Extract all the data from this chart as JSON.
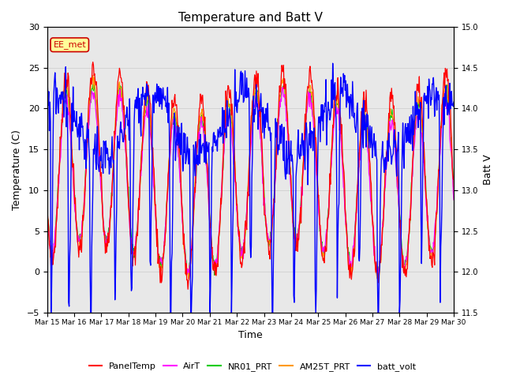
{
  "title": "Temperature and Batt V",
  "xlabel": "Time",
  "ylabel_left": "Temperature (C)",
  "ylabel_right": "Batt V",
  "ylim_left": [
    -5,
    30
  ],
  "ylim_right": [
    11.5,
    15.0
  ],
  "yticks_left": [
    -5,
    0,
    5,
    10,
    15,
    20,
    25,
    30
  ],
  "yticks_right": [
    11.5,
    12.0,
    12.5,
    13.0,
    13.5,
    14.0,
    14.5,
    15.0
  ],
  "xtick_labels": [
    "Mar 15",
    "Mar 16",
    "Mar 17",
    "Mar 18",
    "Mar 19",
    "Mar 20",
    "Mar 21",
    "Mar 22",
    "Mar 23",
    "Mar 24",
    "Mar 25",
    "Mar 26",
    "Mar 27",
    "Mar 28",
    "Mar 29",
    "Mar 30"
  ],
  "annotation_text": "EE_met",
  "annotation_color": "#cc0000",
  "annotation_bg": "#ffff99",
  "series_colors": {
    "PanelTemp": "#ff0000",
    "AirT": "#ff00ff",
    "NR01_PRT": "#00cc00",
    "AM25T_PRT": "#ff9900",
    "batt_volt": "#0000ff"
  },
  "grid_color": "#d0d0d0",
  "plot_bg": "#ffffff",
  "axes_bg": "#e8e8e8",
  "linewidth_temp": 0.9,
  "linewidth_batt": 1.0
}
